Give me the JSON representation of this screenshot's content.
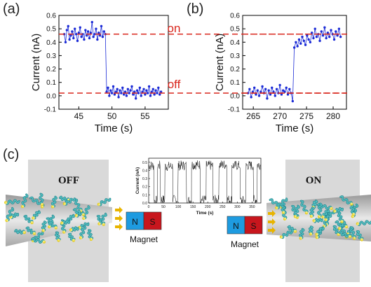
{
  "panels": {
    "a": "(a)",
    "b": "(b)",
    "c": "(c)"
  },
  "state_labels": {
    "on": "on",
    "off": "off",
    "OFF": "OFF",
    "ON": "ON"
  },
  "magnet": {
    "north": "N",
    "south": "S",
    "label": "Magnet",
    "north_color": "#1e9be0",
    "south_color": "#c8161d"
  },
  "colors": {
    "data_points": "#1b2bd6",
    "reference_line": "#d9261c",
    "state_text": "#d9261c"
  },
  "chart_data": [
    {
      "id": "a",
      "type": "line",
      "xlabel": "Time (s)",
      "ylabel": "Current (nA)",
      "xlim": [
        42,
        58.5
      ],
      "ylim": [
        -0.1,
        0.6
      ],
      "xticks": [
        "45",
        "50",
        "55"
      ],
      "xtick_values": [
        45,
        50,
        55
      ],
      "yticks": [
        "-0.1",
        "0.0",
        "0.1",
        "0.2",
        "0.3",
        "0.4",
        "0.5",
        "0.6"
      ],
      "ytick_values": [
        -0.1,
        0.0,
        0.1,
        0.2,
        0.3,
        0.4,
        0.5,
        0.6
      ],
      "reference_lines": [
        0.46,
        0.02
      ],
      "x": [
        42.8,
        43.0,
        43.2,
        43.4,
        43.6,
        43.8,
        44.0,
        44.2,
        44.4,
        44.6,
        44.8,
        45.0,
        45.2,
        45.4,
        45.6,
        45.8,
        46.0,
        46.2,
        46.4,
        46.6,
        46.8,
        47.0,
        47.2,
        47.4,
        47.6,
        47.8,
        48.0,
        48.2,
        48.4,
        48.6,
        48.8,
        49.0,
        49.2,
        49.4,
        49.6,
        49.8,
        50.0,
        50.2,
        50.4,
        50.6,
        50.8,
        51.0,
        51.2,
        51.4,
        51.6,
        51.8,
        52.0,
        52.2,
        52.4,
        52.6,
        52.8,
        53.0,
        53.2,
        53.4,
        53.6,
        53.8,
        54.0,
        54.2,
        54.4,
        54.6,
        54.8,
        55.0,
        55.2,
        55.4,
        55.6,
        55.8,
        56.0,
        56.2,
        56.4,
        56.6,
        56.8,
        57.0,
        57.2,
        57.4
      ],
      "y": [
        0.46,
        0.4,
        0.49,
        0.52,
        0.42,
        0.45,
        0.48,
        0.43,
        0.5,
        0.46,
        0.41,
        0.47,
        0.51,
        0.44,
        0.46,
        0.42,
        0.49,
        0.45,
        0.48,
        0.43,
        0.47,
        0.55,
        0.44,
        0.46,
        0.5,
        0.42,
        0.47,
        0.45,
        0.52,
        0.44,
        0.48,
        0.46,
        0.03,
        0.06,
        0.0,
        0.04,
        0.02,
        0.07,
        0.01,
        0.03,
        0.05,
        -0.01,
        0.04,
        0.02,
        0.06,
        0.01,
        0.03,
        0.0,
        0.05,
        0.02,
        0.04,
        0.07,
        0.01,
        0.03,
        -0.02,
        0.04,
        0.02,
        0.06,
        0.0,
        0.03,
        0.05,
        0.01,
        0.04,
        0.02,
        0.07,
        0.0,
        0.03,
        0.05,
        0.01,
        0.04,
        0.02,
        0.06,
        0.01,
        0.03
      ]
    },
    {
      "id": "b",
      "type": "line",
      "xlabel": "Time (s)",
      "ylabel": "Current (nA)",
      "xlim": [
        263,
        282.5
      ],
      "ylim": [
        -0.1,
        0.6
      ],
      "xticks": [
        "265",
        "270",
        "275",
        "280"
      ],
      "xtick_values": [
        265,
        270,
        275,
        280
      ],
      "yticks": [
        "-0.1",
        "0.0",
        "0.1",
        "0.2",
        "0.3",
        "0.4",
        "0.5",
        "0.6"
      ],
      "ytick_values": [
        -0.1,
        0.0,
        0.1,
        0.2,
        0.3,
        0.4,
        0.5,
        0.6
      ],
      "reference_lines": [
        0.46,
        0.02
      ],
      "x": [
        264.0,
        264.3,
        264.6,
        264.9,
        265.2,
        265.5,
        265.8,
        266.1,
        266.4,
        266.7,
        267.0,
        267.3,
        267.6,
        267.9,
        268.2,
        268.5,
        268.8,
        269.1,
        269.4,
        269.7,
        270.0,
        270.3,
        270.6,
        270.9,
        271.2,
        271.5,
        271.8,
        272.1,
        272.4,
        272.7,
        273.0,
        273.3,
        273.6,
        273.9,
        274.2,
        274.5,
        274.8,
        275.1,
        275.4,
        275.7,
        276.0,
        276.3,
        276.6,
        276.9,
        277.2,
        277.5,
        277.8,
        278.1,
        278.4,
        278.7,
        279.0,
        279.3,
        279.6,
        279.9,
        280.2,
        280.5,
        280.8,
        281.1,
        281.4
      ],
      "y": [
        0.02,
        0.05,
        -0.01,
        0.03,
        0.06,
        0.01,
        0.04,
        0.0,
        0.03,
        0.07,
        0.02,
        0.05,
        -0.02,
        0.04,
        0.01,
        0.06,
        0.03,
        0.0,
        0.05,
        0.02,
        0.08,
        0.01,
        0.04,
        0.03,
        0.06,
        0.01,
        0.05,
        0.02,
        -0.04,
        0.36,
        0.4,
        0.37,
        0.42,
        0.39,
        0.44,
        0.41,
        0.38,
        0.45,
        0.42,
        0.4,
        0.47,
        0.43,
        0.5,
        0.44,
        0.46,
        0.41,
        0.48,
        0.45,
        0.51,
        0.43,
        0.47,
        0.44,
        0.49,
        0.46,
        0.42,
        0.48,
        0.45,
        0.5,
        0.44
      ]
    },
    {
      "id": "inset",
      "type": "line",
      "xlabel": "Time (s)",
      "ylabel": "Current (nA)",
      "xlim": [
        0,
        380
      ],
      "ylim": [
        0,
        0.55
      ],
      "xticks": [
        "0",
        "50",
        "100",
        "150",
        "200",
        "250",
        "300",
        "350"
      ],
      "xtick_values": [
        0,
        50,
        100,
        150,
        200,
        250,
        300,
        350
      ],
      "yticks": [
        "0.0",
        "0.1",
        "0.2",
        "0.3",
        "0.4",
        "0.5"
      ],
      "ytick_values": [
        0.0,
        0.1,
        0.2,
        0.3,
        0.4,
        0.5
      ],
      "segments": [
        {
          "x0": 0,
          "x1": 18,
          "level": 0.46
        },
        {
          "x0": 18,
          "x1": 30,
          "level": 0.03
        },
        {
          "x0": 30,
          "x1": 40,
          "level": 0.46
        },
        {
          "x0": 40,
          "x1": 55,
          "level": 0.04
        },
        {
          "x0": 55,
          "x1": 82,
          "level": 0.45
        },
        {
          "x0": 82,
          "x1": 100,
          "level": 0.04
        },
        {
          "x0": 100,
          "x1": 128,
          "level": 0.46
        },
        {
          "x0": 128,
          "x1": 145,
          "level": 0.03
        },
        {
          "x0": 145,
          "x1": 175,
          "level": 0.47
        },
        {
          "x0": 175,
          "x1": 195,
          "level": 0.04
        },
        {
          "x0": 195,
          "x1": 218,
          "level": 0.46
        },
        {
          "x0": 218,
          "x1": 238,
          "level": 0.04
        },
        {
          "x0": 238,
          "x1": 265,
          "level": 0.47
        },
        {
          "x0": 265,
          "x1": 282,
          "level": 0.04
        },
        {
          "x0": 282,
          "x1": 310,
          "level": 0.46
        },
        {
          "x0": 310,
          "x1": 330,
          "level": 0.03
        },
        {
          "x0": 330,
          "x1": 355,
          "level": 0.46
        },
        {
          "x0": 355,
          "x1": 368,
          "level": 0.04
        },
        {
          "x0": 368,
          "x1": 380,
          "level": 0.47
        }
      ]
    }
  ]
}
